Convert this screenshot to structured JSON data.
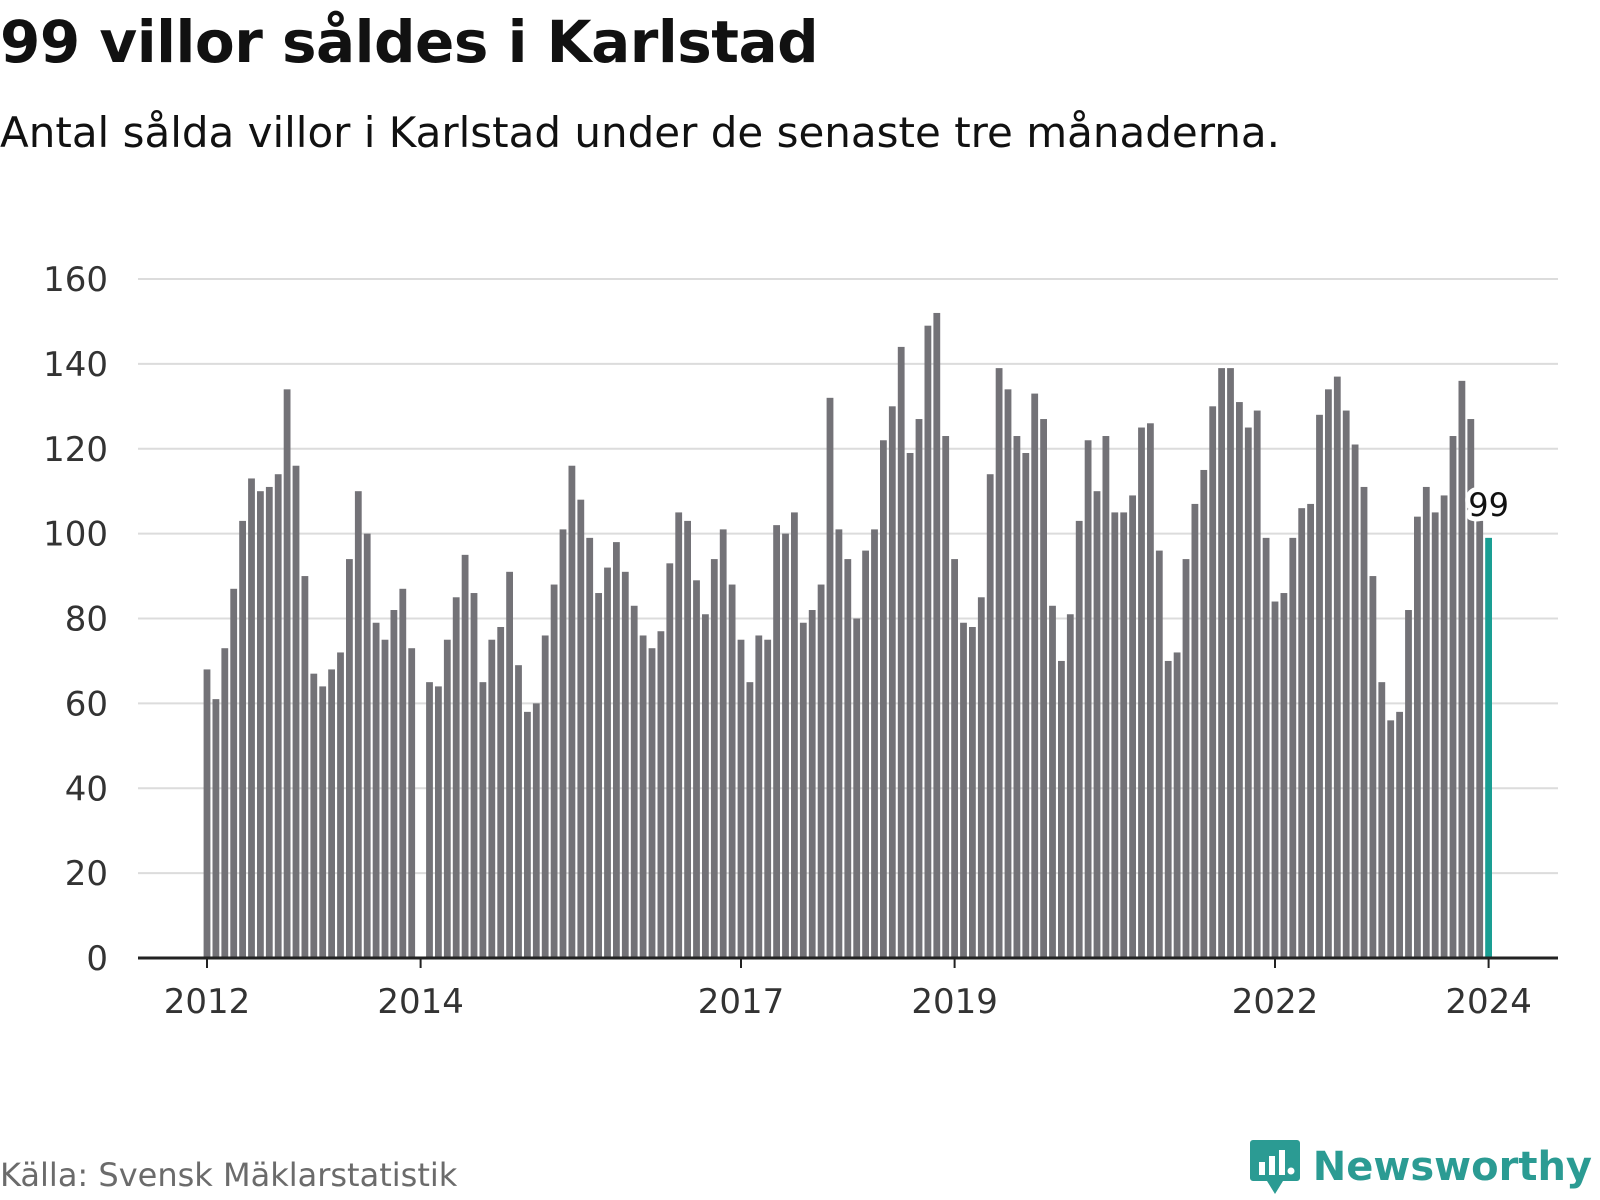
{
  "title": "99 villor såldes i Karlstad",
  "subtitle": "Antal sålda villor i Karlstad under de senaste tre månaderna.",
  "source": "Källa: Svensk Mäklarstatistik",
  "logo": {
    "name": "Newsworthy",
    "icon": "newsworthy-chart-bubble-icon"
  },
  "colors": {
    "bar": "#737277",
    "highlight": "#1a9e93",
    "grid": "#dcdcdc",
    "axis": "#222222",
    "brand": "#2b9b93"
  },
  "chart_data": {
    "type": "bar",
    "title": "99 villor såldes i Karlstad",
    "xlabel": "",
    "ylabel": "",
    "ylim": [
      0,
      160
    ],
    "yticks": [
      0,
      20,
      40,
      60,
      80,
      100,
      120,
      140,
      160
    ],
    "grid": true,
    "x_start": "2012-01",
    "x_tick_labels": [
      {
        "label": "2012",
        "index": 0
      },
      {
        "label": "2014",
        "index": 24
      },
      {
        "label": "2017",
        "index": 60
      },
      {
        "label": "2019",
        "index": 84
      },
      {
        "label": "2022",
        "index": 120
      },
      {
        "label": "2024",
        "index": 144
      }
    ],
    "values": [
      68,
      61,
      73,
      87,
      103,
      113,
      110,
      111,
      114,
      134,
      116,
      90,
      67,
      64,
      68,
      72,
      94,
      110,
      100,
      79,
      75,
      82,
      87,
      73,
      null,
      65,
      64,
      75,
      85,
      95,
      86,
      65,
      75,
      78,
      91,
      69,
      58,
      60,
      76,
      88,
      101,
      116,
      108,
      99,
      86,
      92,
      98,
      91,
      83,
      76,
      73,
      77,
      93,
      105,
      103,
      89,
      81,
      94,
      101,
      88,
      75,
      65,
      76,
      75,
      102,
      100,
      105,
      79,
      82,
      88,
      132,
      101,
      94,
      80,
      96,
      101,
      122,
      130,
      144,
      119,
      127,
      149,
      152,
      123,
      94,
      79,
      78,
      85,
      114,
      139,
      134,
      123,
      119,
      133,
      127,
      83,
      70,
      81,
      103,
      122,
      110,
      123,
      105,
      105,
      109,
      125,
      126,
      96,
      70,
      72,
      94,
      107,
      115,
      130,
      139,
      139,
      131,
      125,
      129,
      99,
      84,
      86,
      99,
      106,
      107,
      128,
      134,
      137,
      129,
      121,
      111,
      90,
      65,
      56,
      58,
      82,
      104,
      111,
      105,
      109,
      123,
      136,
      127,
      103,
      99
    ],
    "highlight": {
      "index": 144,
      "value": 99,
      "label": "99"
    }
  }
}
